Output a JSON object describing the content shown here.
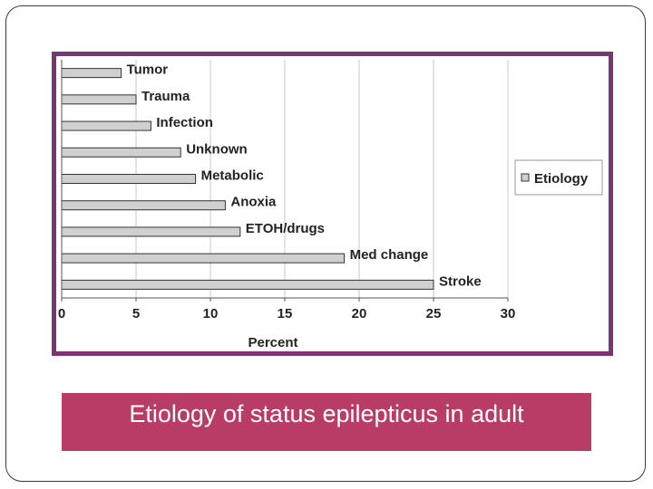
{
  "slide": {
    "caption": "Etiology of status epilepticus in adult"
  },
  "colors": {
    "frame": "#7a3577",
    "caption_bg": "#b83c66",
    "bar_fill": "#d0d0d0",
    "bar_stroke": "#333333",
    "grid": "#c8c8c8"
  },
  "chart_data": {
    "type": "bar",
    "orientation": "horizontal",
    "categories": [
      "Tumor",
      "Trauma",
      "Infection",
      "Unknown",
      "Metabolic",
      "Anoxia",
      "ETOH/drugs",
      "Med change",
      "Stroke"
    ],
    "series": [
      {
        "name": "Etiology",
        "values": [
          4,
          5,
          6,
          8,
          9,
          11,
          12,
          19,
          25
        ]
      }
    ],
    "xlabel": "Percent",
    "xlim": [
      0,
      30
    ],
    "xticks": [
      0,
      5,
      10,
      15,
      20,
      25,
      30
    ],
    "grid": "vertical",
    "legend": "right",
    "data_labels": "category names at bar ends"
  }
}
